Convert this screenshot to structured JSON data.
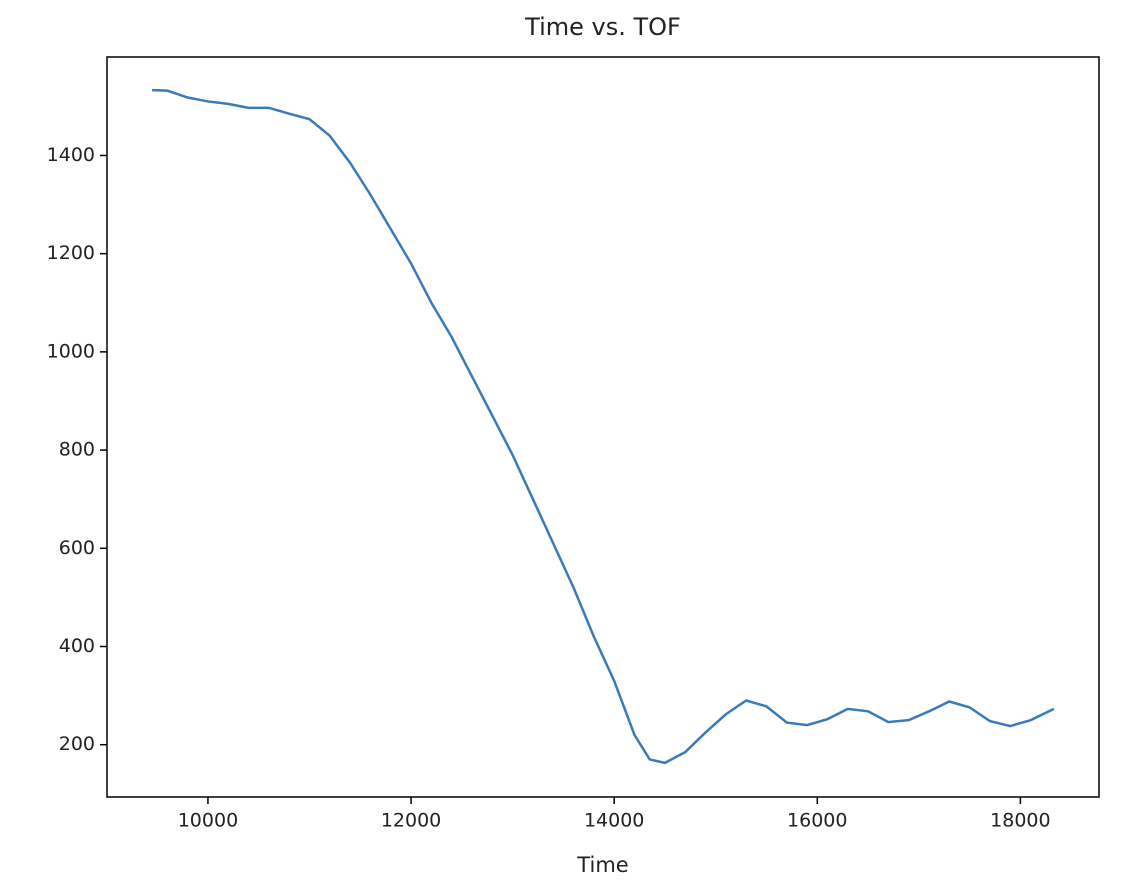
{
  "chart_data": {
    "type": "line",
    "title": "Time vs. TOF",
    "xlabel": "Time",
    "x": [
      9450,
      9600,
      9800,
      10000,
      10200,
      10400,
      10600,
      10800,
      11000,
      11200,
      11400,
      11600,
      11800,
      12000,
      12200,
      12400,
      12600,
      12800,
      13000,
      13200,
      13400,
      13600,
      13800,
      14000,
      14200,
      14350,
      14500,
      14700,
      14900,
      15100,
      15300,
      15500,
      15700,
      15900,
      16100,
      16300,
      16500,
      16700,
      16900,
      17100,
      17300,
      17500,
      17700,
      17900,
      18100,
      18330
    ],
    "series": [
      {
        "name": "TOF",
        "color": "#3a7ab8",
        "values": [
          1533,
          1532,
          1518,
          1510,
          1505,
          1497,
          1497,
          1485,
          1474,
          1440,
          1385,
          1320,
          1250,
          1180,
          1100,
          1030,
          950,
          870,
          790,
          700,
          610,
          520,
          420,
          330,
          220,
          170,
          163,
          185,
          225,
          262,
          290,
          278,
          245,
          240,
          252,
          273,
          268,
          246,
          250,
          268,
          288,
          276,
          248,
          238,
          250,
          273
        ]
      }
    ],
    "xlim": [
      9006,
      18774
    ],
    "xticks": [
      10000,
      12000,
      14000,
      16000,
      18000
    ],
    "ylim": [
      93.5,
      1600.5
    ],
    "yticks": [
      200,
      400,
      600,
      800,
      1000,
      1200,
      1400
    ]
  }
}
